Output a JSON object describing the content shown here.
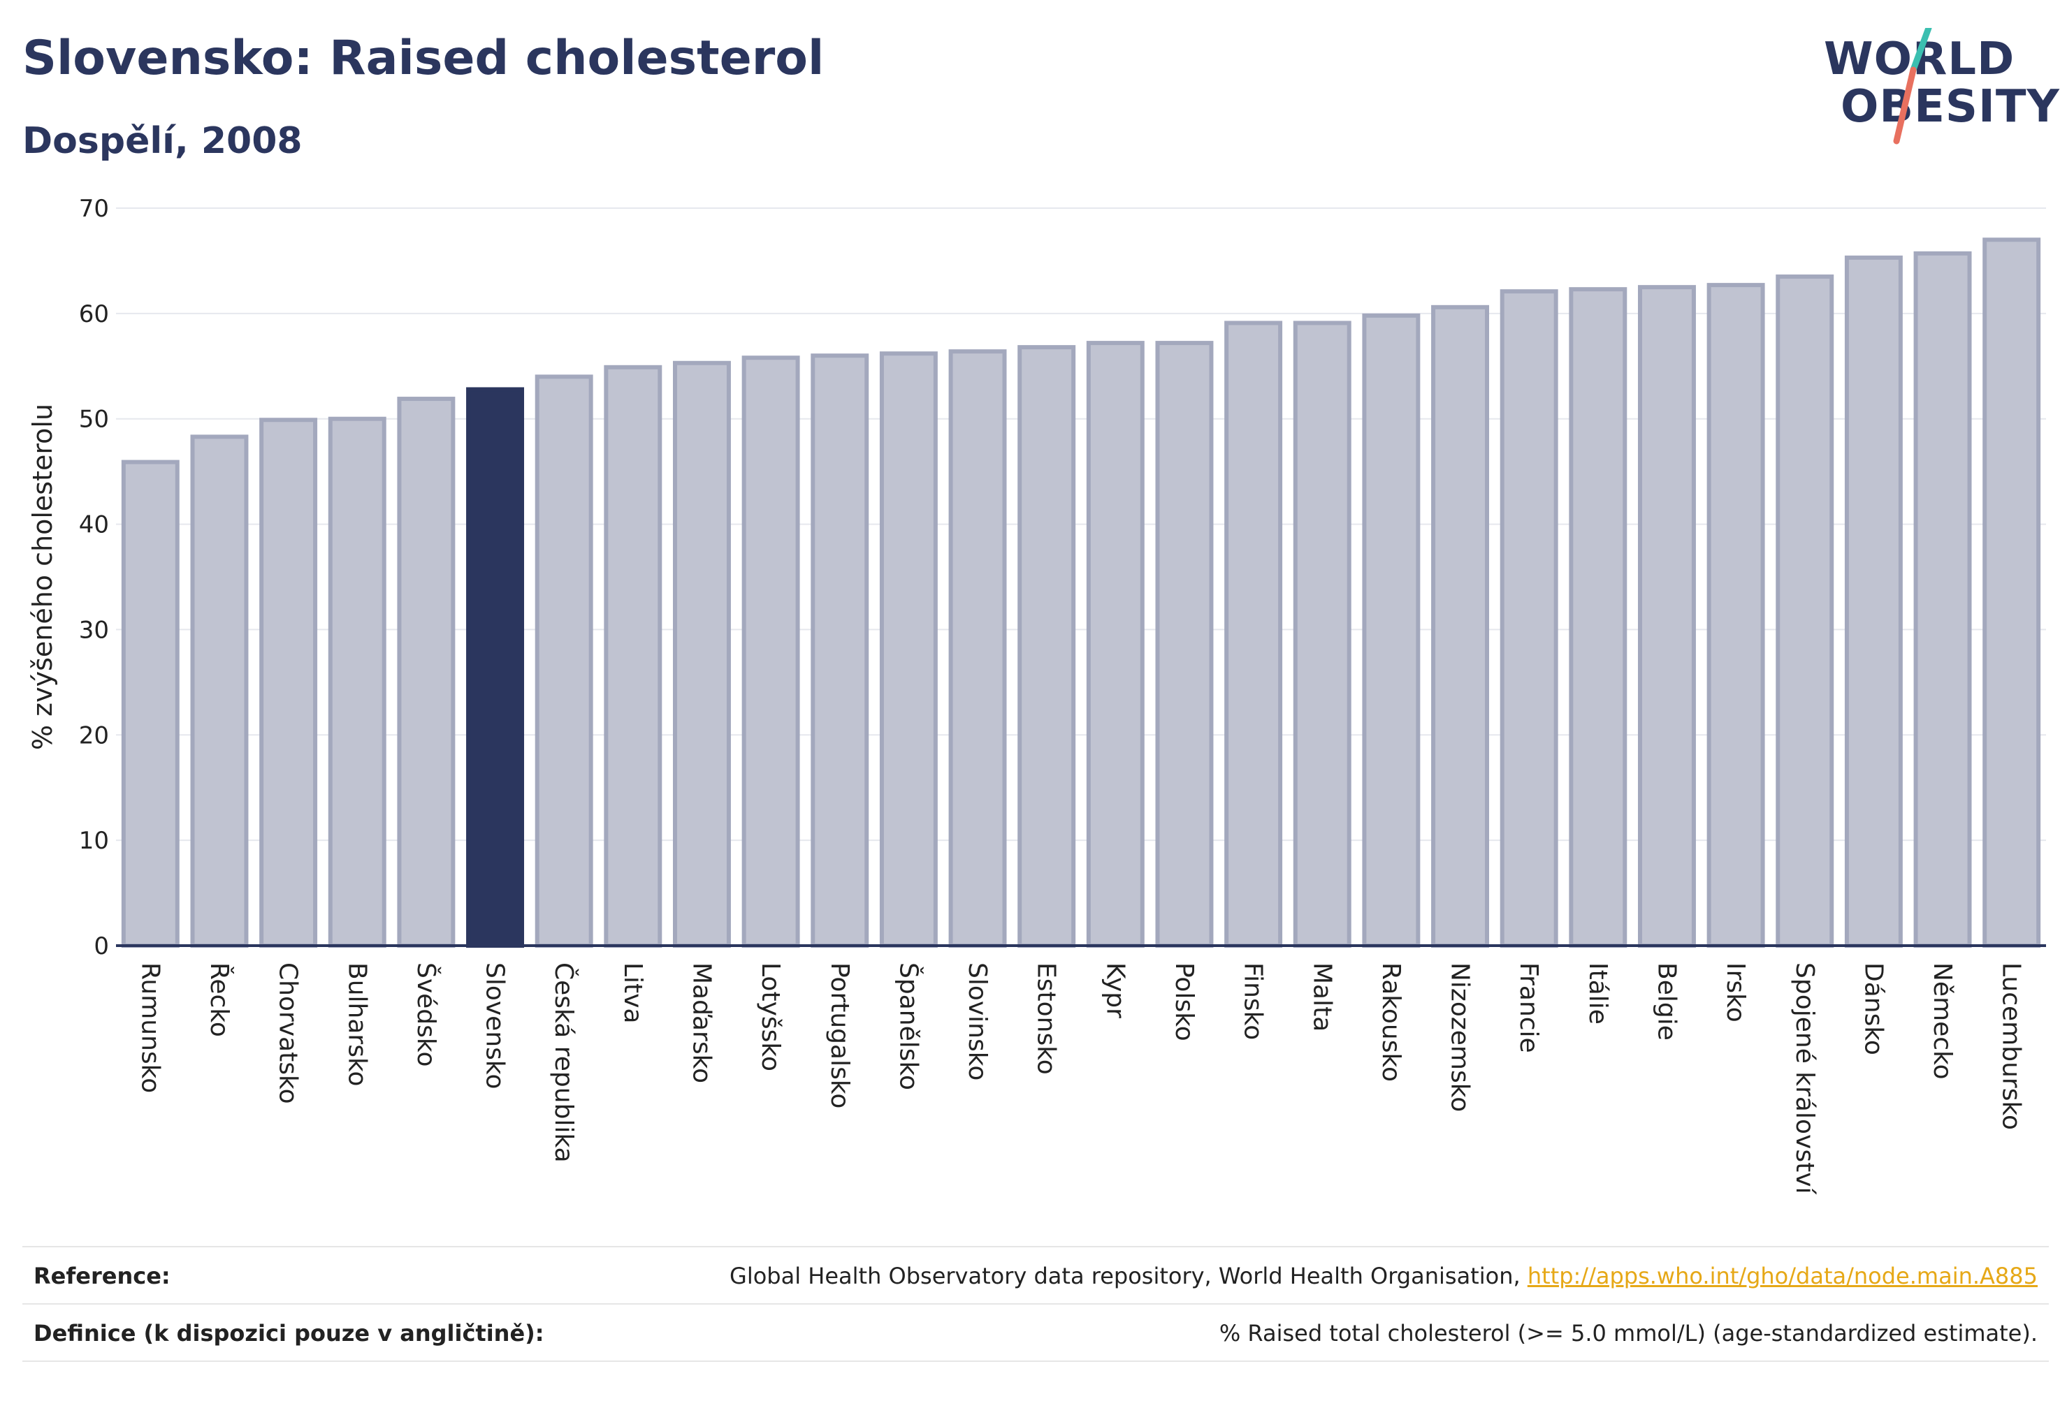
{
  "header": {
    "title": "Slovensko: Raised cholesterol",
    "subtitle": "Dospělí, 2008"
  },
  "logo": {
    "line1": "WORLD",
    "line2": "OBESITY",
    "accent_teal": "#3bbfb0",
    "accent_coral": "#e8705f"
  },
  "colors": {
    "bar": "#c0c3d1",
    "bar_border": "#a3a8bd",
    "highlight": "#2b365e",
    "grid": "#e6e8ee",
    "axis": "#2b365e"
  },
  "chart_data": {
    "type": "bar",
    "ylabel": "% zvýšeného cholesterolu",
    "ylim": [
      0,
      70
    ],
    "yticks": [
      0,
      10,
      20,
      30,
      40,
      50,
      60,
      70
    ],
    "grid": true,
    "highlight": "Slovensko",
    "categories": [
      "Rumunsko",
      "Řecko",
      "Chorvatsko",
      "Bulharsko",
      "Švédsko",
      "Slovensko",
      "Česká republika",
      "Litva",
      "Maďarsko",
      "Lotyšsko",
      "Portugalsko",
      "Španělsko",
      "Slovinsko",
      "Estonsko",
      "Kypr",
      "Polsko",
      "Finsko",
      "Malta",
      "Rakousko",
      "Nizozemsko",
      "Francie",
      "Itálie",
      "Belgie",
      "Irsko",
      "Spojené království",
      "Dánsko",
      "Německo",
      "Lucembursko"
    ],
    "values": [
      45.9,
      48.3,
      49.9,
      50.0,
      51.9,
      52.8,
      54.0,
      54.9,
      55.3,
      55.8,
      56.0,
      56.2,
      56.4,
      56.8,
      57.2,
      57.2,
      59.1,
      59.1,
      59.8,
      60.6,
      62.1,
      62.3,
      62.5,
      62.7,
      63.5,
      65.3,
      65.7,
      67.0
    ]
  },
  "footer": {
    "reference_label": "Reference:",
    "reference_text": "Global Health Observatory data repository, World Health Organisation, ",
    "reference_link": "http://apps.who.int/gho/data/node.main.A885",
    "definition_label": "Definice (k dispozici pouze v angličtině):",
    "definition_text": "% Raised total cholesterol (>= 5.0 mmol/L) (age-standardized estimate)."
  }
}
